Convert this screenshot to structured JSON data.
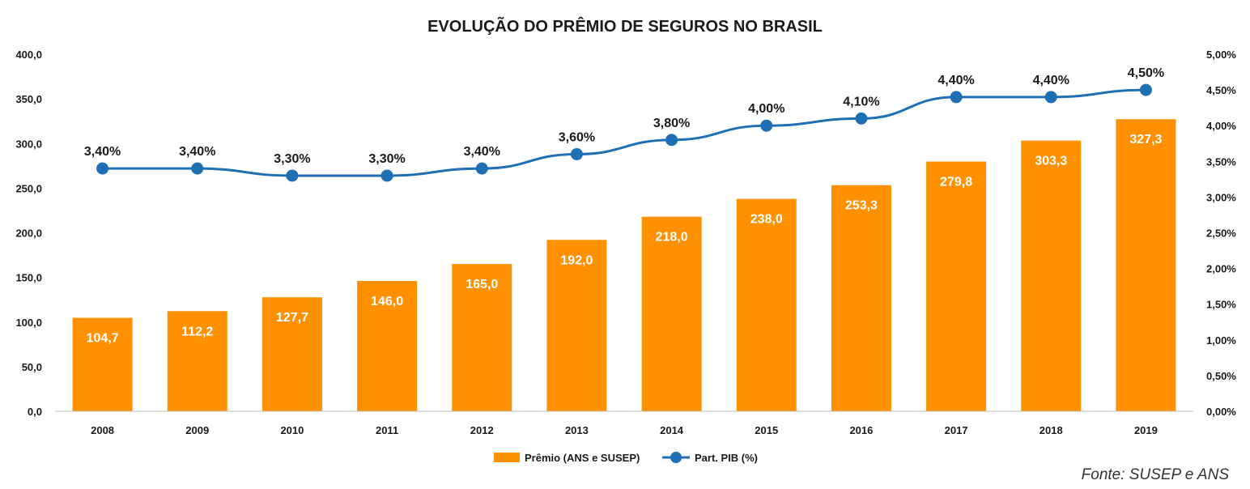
{
  "chart_data": {
    "type": "bar",
    "title": "EVOLUÇÃO DO PRÊMIO DE SEGUROS NO BRASIL",
    "categories": [
      "2008",
      "2009",
      "2010",
      "2011",
      "2012",
      "2013",
      "2014",
      "2015",
      "2016",
      "2017",
      "2018",
      "2019"
    ],
    "series": [
      {
        "name": "Prêmio (ANS e SUSEP)",
        "type": "bar",
        "axis": "left",
        "color": "#FF9100",
        "values": [
          104.7,
          112.2,
          127.7,
          146.0,
          165.0,
          192.0,
          218.0,
          238.0,
          253.3,
          279.8,
          303.3,
          327.3
        ],
        "labels": [
          "104,7",
          "112,2",
          "127,7",
          "146,0",
          "165,0",
          "192,0",
          "218,0",
          "238,0",
          "253,3",
          "279,8",
          "303,3",
          "327,3"
        ]
      },
      {
        "name": "Part. PIB (%)",
        "type": "line",
        "axis": "right",
        "color": "#1F6FB5",
        "values": [
          3.4,
          3.4,
          3.3,
          3.3,
          3.4,
          3.6,
          3.8,
          4.0,
          4.1,
          4.4,
          4.4,
          4.5
        ],
        "labels": [
          "3,40%",
          "3,40%",
          "3,30%",
          "3,30%",
          "3,40%",
          "3,60%",
          "3,80%",
          "4,00%",
          "4,10%",
          "4,40%",
          "4,40%",
          "4,50%"
        ]
      }
    ],
    "y_left": {
      "range": [
        0,
        400
      ],
      "ticks": [
        0,
        50,
        100,
        150,
        200,
        250,
        300,
        350,
        400
      ],
      "tick_labels": [
        "0,0",
        "50,0",
        "100,0",
        "150,0",
        "200,0",
        "250,0",
        "300,0",
        "350,0",
        "400,0"
      ]
    },
    "y_right": {
      "range": [
        0,
        5
      ],
      "ticks": [
        0,
        0.5,
        1,
        1.5,
        2,
        2.5,
        3,
        3.5,
        4,
        4.5,
        5
      ],
      "tick_labels": [
        "0,00%",
        "0,50%",
        "1,00%",
        "1,50%",
        "2,00%",
        "2,50%",
        "3,00%",
        "3,50%",
        "4,00%",
        "4,50%",
        "5,00%"
      ]
    },
    "grid": false,
    "legend": "bottom-center",
    "source": "Fonte: SUSEP e ANS"
  }
}
